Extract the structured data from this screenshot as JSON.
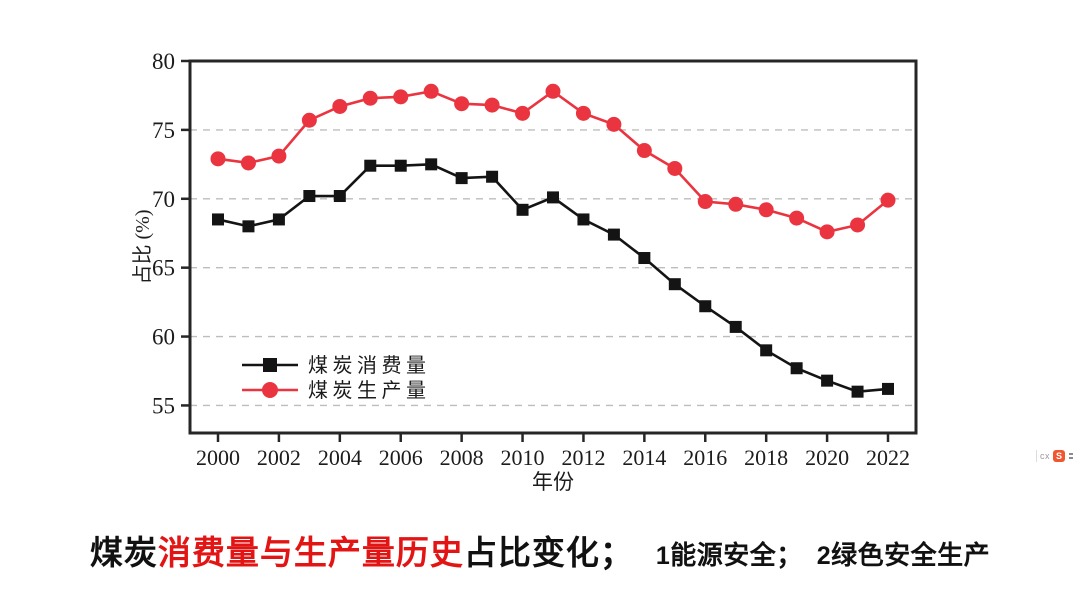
{
  "chart_data": {
    "type": "line",
    "title": "",
    "xlabel": "年份",
    "ylabel": "占比 (%)",
    "x": [
      2000,
      2001,
      2002,
      2003,
      2004,
      2005,
      2006,
      2007,
      2008,
      2009,
      2010,
      2011,
      2012,
      2013,
      2014,
      2015,
      2016,
      2017,
      2018,
      2019,
      2020,
      2021,
      2022
    ],
    "xticks": [
      2000,
      2002,
      2004,
      2006,
      2008,
      2010,
      2012,
      2014,
      2016,
      2018,
      2020,
      2022
    ],
    "ylim": [
      53,
      80
    ],
    "yticks": [
      55,
      60,
      65,
      70,
      75,
      80
    ],
    "grid": "horizontal-dashed",
    "legend_position": "inside-lower-left",
    "series": [
      {
        "name": "煤炭消费量",
        "marker": "square",
        "color": "#141414",
        "values": [
          68.5,
          68.0,
          68.5,
          70.2,
          70.2,
          72.4,
          72.4,
          72.5,
          71.5,
          71.6,
          69.2,
          70.1,
          68.5,
          67.4,
          65.7,
          63.8,
          62.2,
          60.7,
          59.0,
          57.7,
          56.8,
          56.0,
          56.2
        ]
      },
      {
        "name": "煤炭生产量",
        "marker": "circle",
        "color": "#ea3540",
        "values": [
          72.9,
          72.6,
          73.1,
          75.7,
          76.7,
          77.3,
          77.4,
          77.8,
          76.9,
          76.8,
          76.2,
          77.8,
          76.2,
          75.4,
          73.5,
          72.2,
          69.8,
          69.6,
          69.2,
          68.6,
          67.6,
          68.1,
          69.9
        ]
      }
    ]
  },
  "caption": {
    "part1": "煤炭",
    "part2_red": "消费量与生产量历史",
    "part3": "占比变化；",
    "note1_num": "1",
    "note1_text": "能源安全；",
    "note2_num": "2",
    "note2_text": "绿色安全生产"
  },
  "watermark": {
    "text": "cx",
    "logo_letter": "S"
  },
  "colors": {
    "consumption_series": "#141414",
    "production_series": "#ea3540",
    "caption_red": "#e31414",
    "frame": "#262626",
    "gridline": "#bdbdbd",
    "watermark_logo_bg": "#f0572e"
  }
}
